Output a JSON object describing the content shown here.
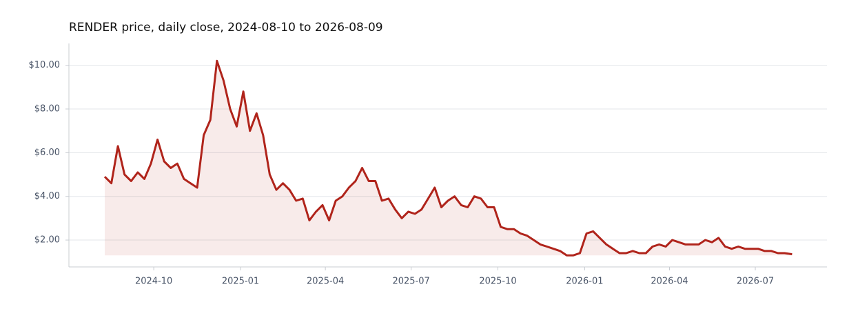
{
  "chart_data": {
    "type": "line",
    "title": "RENDER price, daily close, 2024-08-10 to 2026-08-09",
    "x": [
      "2024-08-10",
      "2024-08-17",
      "2024-08-24",
      "2024-08-31",
      "2024-09-07",
      "2024-09-14",
      "2024-09-21",
      "2024-09-28",
      "2024-10-05",
      "2024-10-12",
      "2024-10-19",
      "2024-10-26",
      "2024-11-02",
      "2024-11-09",
      "2024-11-16",
      "2024-11-23",
      "2024-11-30",
      "2024-12-07",
      "2024-12-14",
      "2024-12-21",
      "2024-12-28",
      "2025-01-04",
      "2025-01-11",
      "2025-01-18",
      "2025-01-25",
      "2025-02-01",
      "2025-02-08",
      "2025-02-15",
      "2025-02-22",
      "2025-03-01",
      "2025-03-08",
      "2025-03-15",
      "2025-03-22",
      "2025-03-29",
      "2025-04-05",
      "2025-04-12",
      "2025-04-19",
      "2025-04-26",
      "2025-05-03",
      "2025-05-10",
      "2025-05-17",
      "2025-05-24",
      "2025-05-31",
      "2025-06-07",
      "2025-06-14",
      "2025-06-21",
      "2025-06-28",
      "2025-07-05",
      "2025-07-12",
      "2025-07-19",
      "2025-07-26",
      "2025-08-02",
      "2025-08-09",
      "2025-08-16",
      "2025-08-23",
      "2025-08-30",
      "2025-09-06",
      "2025-09-13",
      "2025-09-20",
      "2025-09-27",
      "2025-10-04",
      "2025-10-11",
      "2025-10-18",
      "2025-10-25",
      "2025-11-01",
      "2025-11-08",
      "2025-11-15",
      "2025-11-22",
      "2025-11-29",
      "2025-12-06",
      "2025-12-13",
      "2025-12-20",
      "2025-12-27",
      "2026-01-03",
      "2026-01-10",
      "2026-01-17",
      "2026-01-24",
      "2026-01-31",
      "2026-02-07",
      "2026-02-14",
      "2026-02-21",
      "2026-02-28",
      "2026-03-07",
      "2026-03-14",
      "2026-03-21",
      "2026-03-28",
      "2026-04-04",
      "2026-04-11",
      "2026-04-18",
      "2026-04-25",
      "2026-05-02",
      "2026-05-09",
      "2026-05-16",
      "2026-05-23",
      "2026-05-30",
      "2026-06-06",
      "2026-06-13",
      "2026-06-20",
      "2026-06-27",
      "2026-07-04",
      "2026-07-11",
      "2026-07-18",
      "2026-07-25",
      "2026-08-01",
      "2026-08-09"
    ],
    "series": [
      {
        "name": "RENDER",
        "color": "#b0241b",
        "values": [
          4.9,
          4.6,
          6.3,
          5.0,
          4.7,
          5.1,
          4.8,
          5.5,
          6.6,
          5.6,
          5.3,
          5.5,
          4.8,
          4.6,
          4.4,
          6.8,
          7.5,
          10.2,
          9.3,
          8.0,
          7.2,
          8.8,
          7.0,
          7.8,
          6.8,
          5.0,
          4.3,
          4.6,
          4.3,
          3.8,
          3.9,
          2.9,
          3.3,
          3.6,
          2.9,
          3.8,
          4.0,
          4.4,
          4.7,
          5.3,
          4.7,
          4.7,
          3.8,
          3.9,
          3.4,
          3.0,
          3.3,
          3.2,
          3.4,
          3.9,
          4.4,
          3.5,
          3.8,
          4.0,
          3.6,
          3.5,
          4.0,
          3.9,
          3.5,
          3.5,
          2.6,
          2.5,
          2.5,
          2.3,
          2.2,
          2.0,
          1.8,
          1.7,
          1.6,
          1.5,
          1.3,
          1.3,
          1.4,
          2.3,
          2.4,
          2.1,
          1.8,
          1.6,
          1.4,
          1.4,
          1.5,
          1.4,
          1.4,
          1.7,
          1.8,
          1.7,
          2.0,
          1.9,
          1.8,
          1.8,
          1.8,
          2.0,
          1.9,
          2.1,
          1.7,
          1.6,
          1.7,
          1.6,
          1.6,
          1.6,
          1.5,
          1.5,
          1.4,
          1.4,
          1.35
        ]
      }
    ],
    "xlim": [
      "2024-07-03",
      "2026-09-15"
    ],
    "xticks": [
      "2024-10",
      "2025-01",
      "2025-04",
      "2025-07",
      "2025-10",
      "2026-01",
      "2026-04",
      "2026-07"
    ],
    "ylim": [
      0.77,
      11.0
    ],
    "yticks": [
      {
        "value": 2,
        "label": "$2.00"
      },
      {
        "value": 4,
        "label": "$4.00"
      },
      {
        "value": 6,
        "label": "$6.00"
      },
      {
        "value": 8,
        "label": "$8.00"
      },
      {
        "value": 10,
        "label": "$10.00"
      }
    ],
    "grid": true
  }
}
